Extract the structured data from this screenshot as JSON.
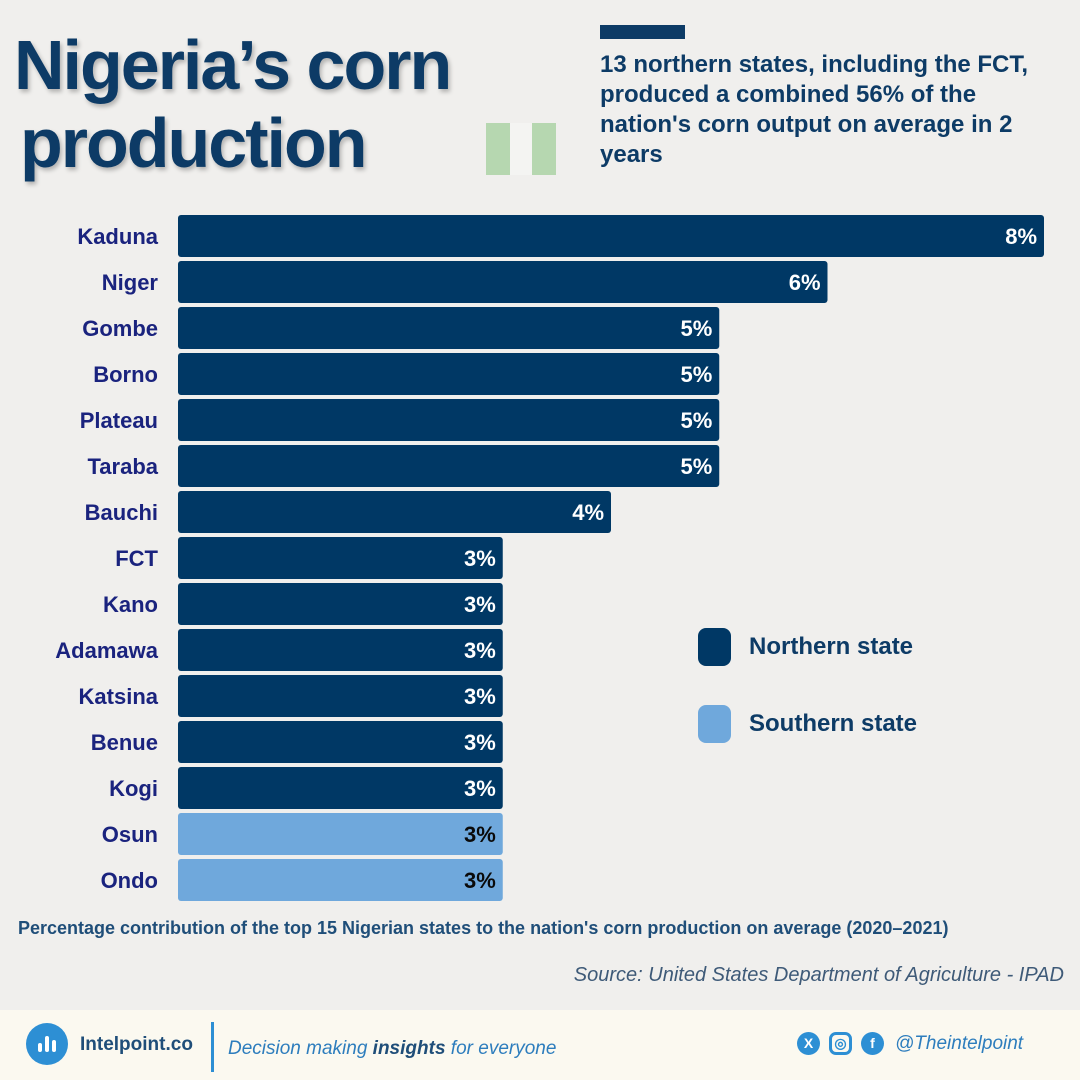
{
  "header": {
    "title_line1": "Nigeria’s corn",
    "title_line2": "production",
    "headline": "13 northern states, including the FCT, produced a combined 56% of the nation's corn output on average in 2 years"
  },
  "colors": {
    "northern": "#003865",
    "southern": "#6fa8dc",
    "flag_green": "#b6d7b0",
    "flag_white": "#f4f4f2"
  },
  "chart_data": {
    "type": "bar",
    "orientation": "horizontal",
    "categories": [
      "Kaduna",
      "Niger",
      "Gombe",
      "Borno",
      "Plateau",
      "Taraba",
      "Bauchi",
      "FCT",
      "Kano",
      "Adamawa",
      "Katsina",
      "Benue",
      "Kogi",
      "Osun",
      "Ondo"
    ],
    "values": [
      8,
      6,
      5,
      5,
      5,
      5,
      4,
      3,
      3,
      3,
      3,
      3,
      3,
      3,
      3
    ],
    "value_labels": [
      "8%",
      "6%",
      "5%",
      "5%",
      "5%",
      "5%",
      "4%",
      "3%",
      "3%",
      "3%",
      "3%",
      "3%",
      "3%",
      "3%",
      "3%"
    ],
    "groups": [
      "Northern state",
      "Northern state",
      "Northern state",
      "Northern state",
      "Northern state",
      "Northern state",
      "Northern state",
      "Northern state",
      "Northern state",
      "Northern state",
      "Northern state",
      "Northern state",
      "Northern state",
      "Southern state",
      "Southern state"
    ],
    "legend": [
      "Northern state",
      "Southern state"
    ],
    "legend_position": "right",
    "xlim": [
      0,
      8
    ],
    "grid": false
  },
  "caption": "Percentage contribution of the top 15 Nigerian states to the nation's corn production on average (2020–2021)",
  "source": "Source: United States Department of Agriculture - IPAD",
  "footer": {
    "brand": "Intelpoint.co",
    "tagline_pre": "Decision making ",
    "tagline_bold": "insights",
    "tagline_post": " for everyone",
    "social_icons": [
      "x-icon",
      "instagram-icon",
      "facebook-icon"
    ],
    "handle": "@Theintelpoint"
  }
}
